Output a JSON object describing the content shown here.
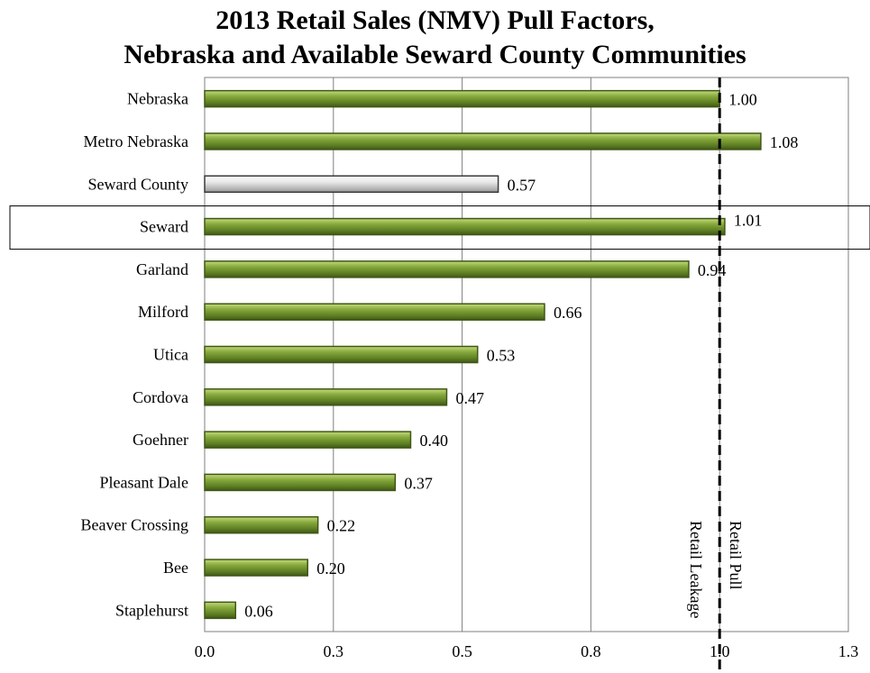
{
  "chart_data": {
    "type": "bar",
    "orientation": "horizontal",
    "title_lines": [
      "2013 Retail Sales (NMV) Pull Factors,",
      "Nebraska and Available Seward County Communities"
    ],
    "categories": [
      "Nebraska",
      "Metro Nebraska",
      "Seward County",
      "Seward",
      "Garland",
      "Milford",
      "Utica",
      "Cordova",
      "Goehner",
      "Pleasant Dale",
      "Beaver Crossing",
      "Bee",
      "Staplehurst"
    ],
    "values": [
      1.0,
      1.08,
      0.57,
      1.01,
      0.94,
      0.66,
      0.53,
      0.47,
      0.4,
      0.37,
      0.22,
      0.2,
      0.06
    ],
    "value_labels": [
      "1.00",
      "1.08",
      "0.57",
      "1.01",
      "0.94",
      "0.66",
      "0.53",
      "0.47",
      "0.40",
      "0.37",
      "0.22",
      "0.20",
      "0.06"
    ],
    "highlighted_category": "Seward County",
    "boxed_category": "Seward",
    "xlim": [
      0,
      1.25
    ],
    "x_ticks": [
      0,
      0.25,
      0.5,
      0.75,
      1.0,
      1.25
    ],
    "x_tick_labels": [
      "0.0",
      "0.3",
      "0.5",
      "0.8",
      "1.0",
      "1.3"
    ],
    "grid": true,
    "reference_line": {
      "value": 1.0,
      "style": "dashed"
    },
    "annotations": [
      "Retail Leakage",
      "Retail Pull"
    ],
    "colors": {
      "bar": "#6f8f2f",
      "bar_light": "#b3cf6a",
      "bar_dark": "#3f5717",
      "highlight": "#d8d8d8",
      "grid": "#7f7f7f",
      "reference": "#000000"
    }
  }
}
